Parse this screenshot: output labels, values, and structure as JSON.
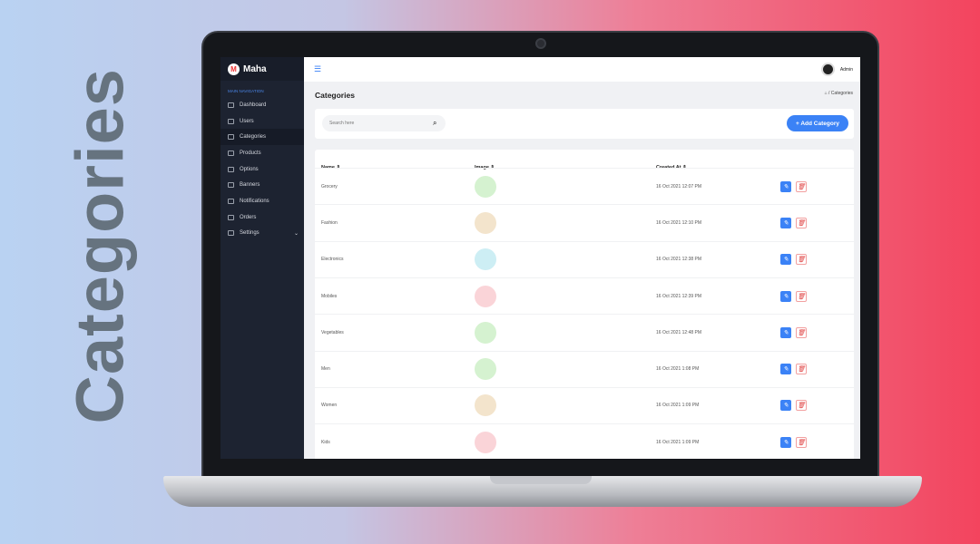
{
  "hero_text": "Categories",
  "app": {
    "name": "Maha",
    "user": "Admin"
  },
  "sidebar": {
    "heading": "MAIN NAVIGATION",
    "items": [
      {
        "label": "Dashboard"
      },
      {
        "label": "Users"
      },
      {
        "label": "Categories",
        "active": true
      },
      {
        "label": "Products"
      },
      {
        "label": "Options"
      },
      {
        "label": "Banners"
      },
      {
        "label": "Notifications"
      },
      {
        "label": "Orders"
      },
      {
        "label": "Settings",
        "has_submenu": true
      }
    ]
  },
  "page": {
    "title": "Categories",
    "breadcrumb": "/ Categories"
  },
  "search": {
    "placeholder": "Search here"
  },
  "add_button": "+ Add Category",
  "table": {
    "headers": [
      "Name ⇕",
      "Image ⇕",
      "Created At ⇕"
    ],
    "rows": [
      {
        "name": "Grocery",
        "created": "16 Oct 2021 12:07 PM",
        "color": "#d5f2d0"
      },
      {
        "name": "Fashion",
        "created": "16 Oct 2021 12:10 PM",
        "color": "#f3e4cc"
      },
      {
        "name": "Electronics",
        "created": "16 Oct 2021 12:38 PM",
        "color": "#cdeef4"
      },
      {
        "name": "Mobiles",
        "created": "16 Oct 2021 12:39 PM",
        "color": "#fad4d8"
      },
      {
        "name": "Vegetables",
        "created": "16 Oct 2021 12:48 PM",
        "color": "#d5f2d0"
      },
      {
        "name": "Men",
        "created": "16 Oct 2021 1:08 PM",
        "color": "#d5f2d0"
      },
      {
        "name": "Women",
        "created": "16 Oct 2021 1:09 PM",
        "color": "#f3e4cc"
      },
      {
        "name": "Kids",
        "created": "16 Oct 2021 1:09 PM",
        "color": "#fad4d8"
      }
    ]
  },
  "colors": {
    "accent": "#3b82f6",
    "sidebar": "#1d2331",
    "danger": "#e04545"
  }
}
